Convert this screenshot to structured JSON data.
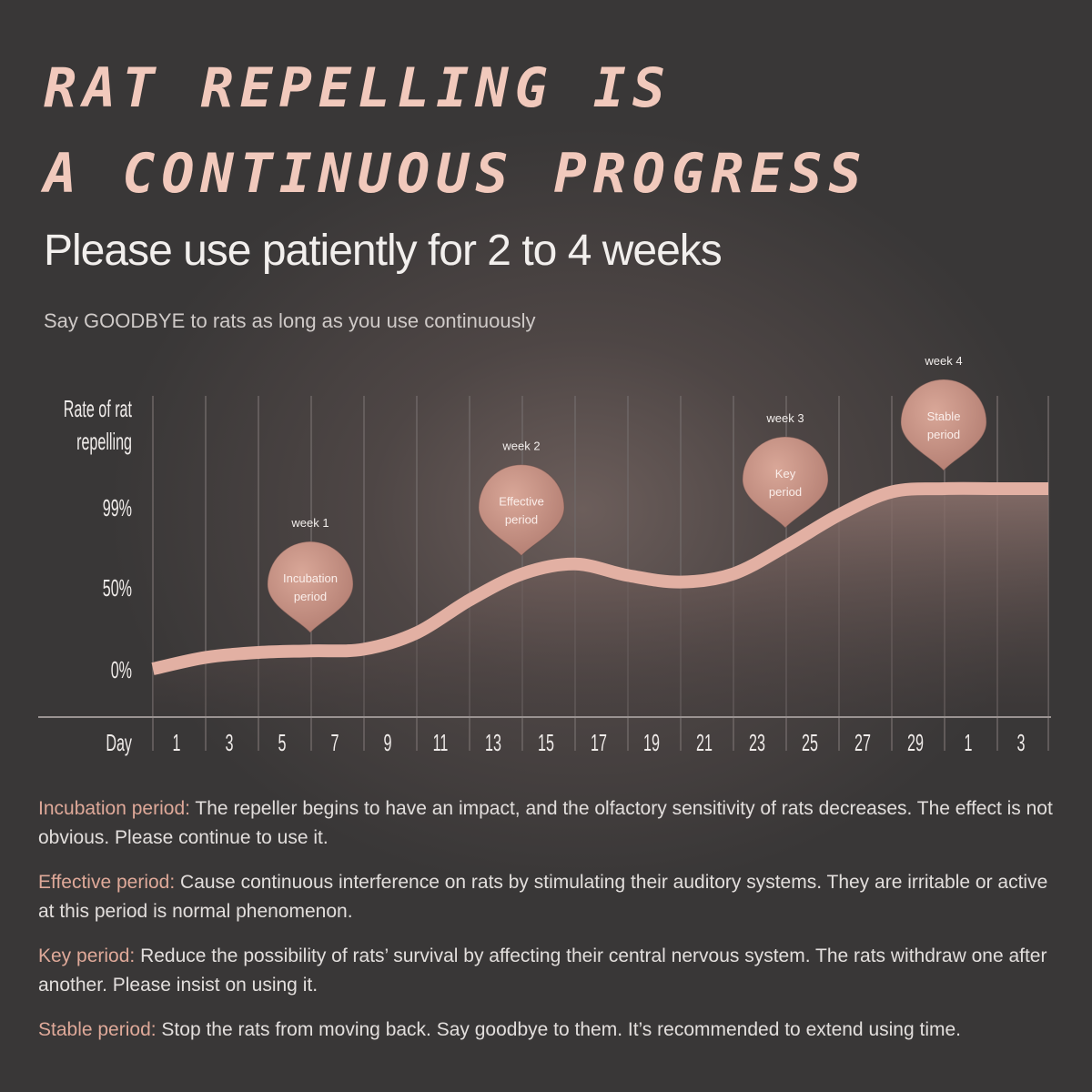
{
  "title_line1": "RAT REPELLING IS",
  "title_line2": "A CONTINUOUS PROGRESS",
  "subtitle": "Please use patiently for 2 to 4 weeks",
  "tagline": "Say GOODBYE to rats as long as you use continuously",
  "colors": {
    "accent": "#e2b0a3",
    "marker": "#c99285",
    "label": "#dfa999"
  },
  "chart_data": {
    "type": "area",
    "ylabel": "Rate of rat repelling",
    "xlabel": "Day",
    "y_ticks": [
      {
        "label": "99%",
        "value": 99
      },
      {
        "label": "50%",
        "value": 50
      },
      {
        "label": "0%",
        "value": 0
      }
    ],
    "x_tick_labels": [
      "1",
      "3",
      "5",
      "7",
      "9",
      "11",
      "13",
      "15",
      "17",
      "19",
      "21",
      "23",
      "25",
      "27",
      "29",
      "1",
      "3"
    ],
    "curve": [
      0,
      7,
      10,
      11,
      12,
      22,
      42,
      58,
      64,
      57,
      53,
      58,
      75,
      94,
      108,
      110,
      110,
      110
    ],
    "markers": [
      {
        "week": "week 1",
        "line1": "Incubation",
        "line2": "period",
        "grid_index": 3
      },
      {
        "week": "week 2",
        "line1": "Effective",
        "line2": "period",
        "grid_index": 7
      },
      {
        "week": "week 3",
        "line1": "Key",
        "line2": "period",
        "grid_index": 12
      },
      {
        "week": "week 4",
        "line1": "Stable",
        "line2": "period",
        "grid_index": 15
      }
    ],
    "grid": true
  },
  "descriptions": [
    {
      "term": "Incubation period:",
      "text": " The repeller begins to have an impact, and the olfactory sensitivity of rats decreases. The effect is not obvious. Please continue to use it."
    },
    {
      "term": "Effective period:",
      "text": " Cause continuous interference on rats by stimulating their auditory systems. They are irritable or active at this period is normal phenomenon."
    },
    {
      "term": "Key period:",
      "text": " Reduce the possibility of rats’  survival by affecting their central nervous system. The rats withdraw one after another. Please insist on using it."
    },
    {
      "term": "Stable period:",
      "text": " Stop the rats from moving back. Say goodbye to them. It’s recommended to extend using time."
    }
  ]
}
